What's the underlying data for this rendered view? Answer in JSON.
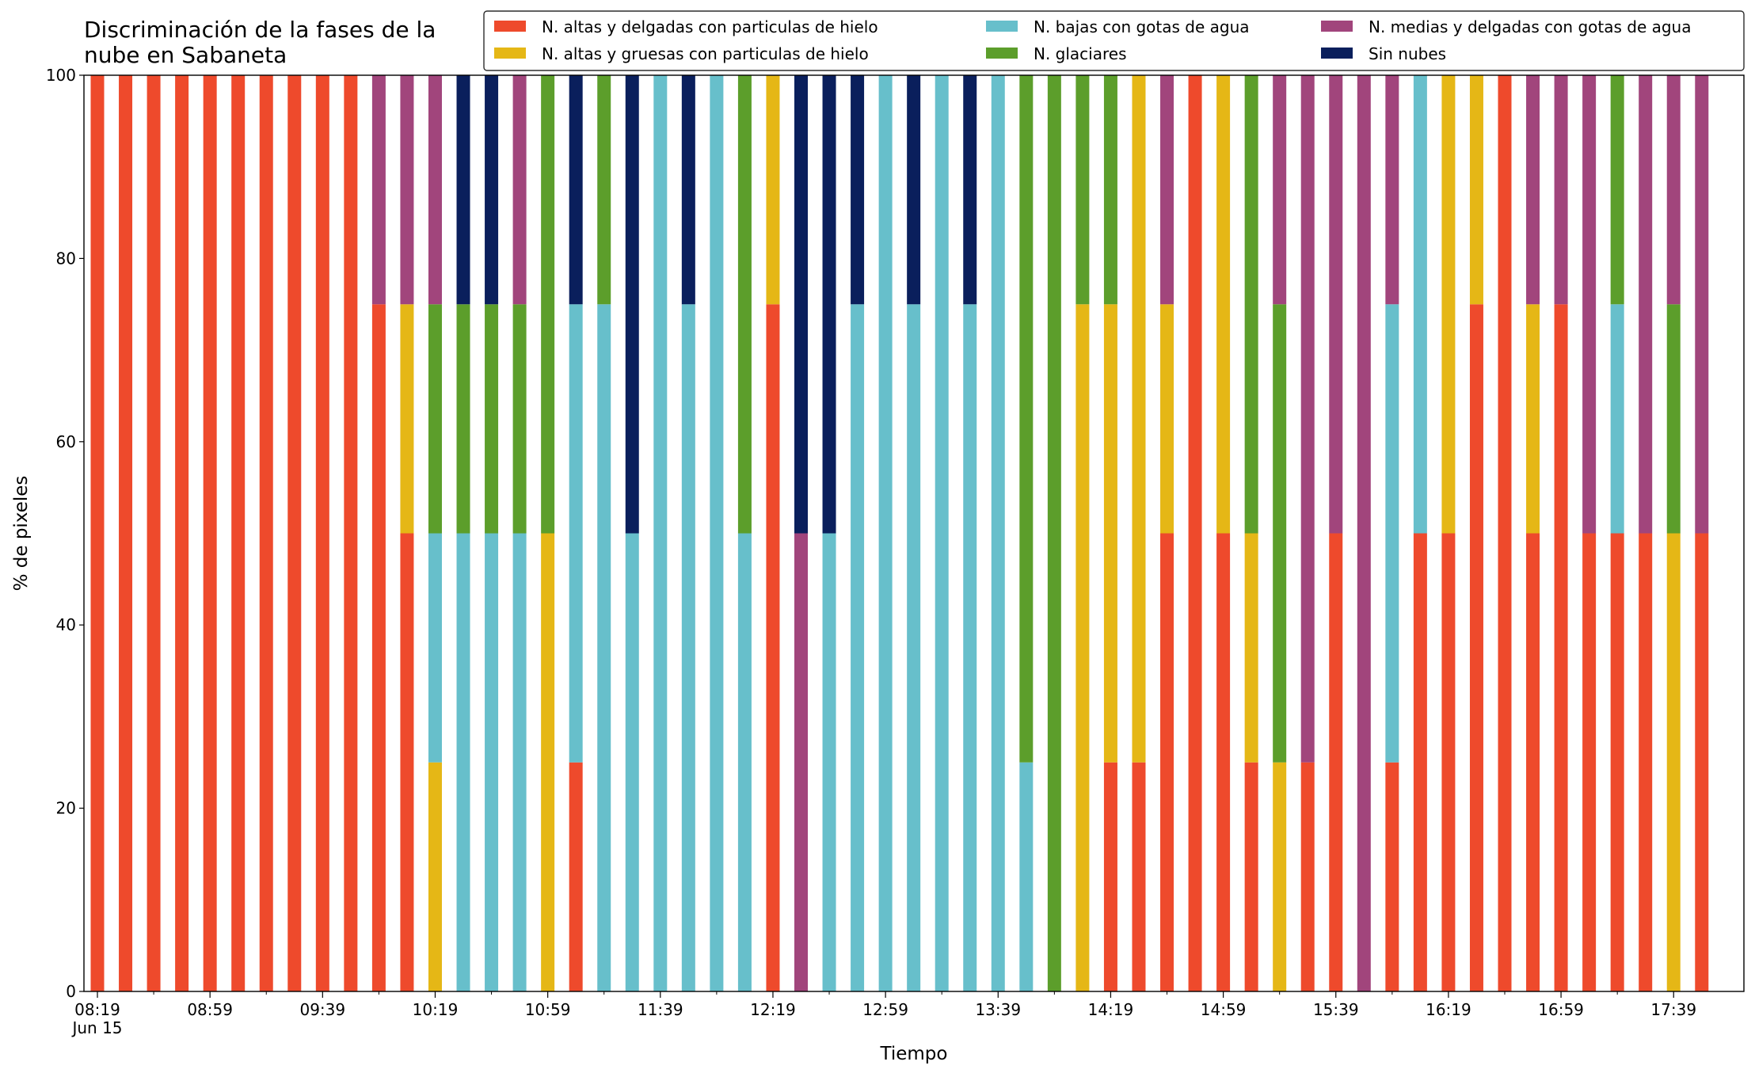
{
  "chart_data": {
    "type": "stacked_bar",
    "title": "Discriminación de la fases de la\nnube en Sabaneta",
    "xlabel": "Tiempo",
    "ylabel": "% de pixeles",
    "x": [
      "08:19",
      "08:29",
      "08:39",
      "08:49",
      "08:59",
      "09:09",
      "09:19",
      "09:29",
      "09:39",
      "09:49",
      "09:59",
      "10:09",
      "10:19",
      "10:29",
      "10:39",
      "10:49",
      "10:59",
      "11:09",
      "11:19",
      "11:29",
      "11:39",
      "11:49",
      "11:59",
      "12:09",
      "12:19",
      "12:29",
      "12:39",
      "12:49",
      "12:59",
      "13:09",
      "13:19",
      "13:29",
      "13:39",
      "13:49",
      "13:59",
      "14:09",
      "14:19",
      "14:29",
      "14:39",
      "14:49",
      "14:59",
      "15:09",
      "15:19",
      "15:29",
      "15:39",
      "15:49",
      "15:59",
      "16:09",
      "16:19",
      "16:29",
      "16:39",
      "16:49",
      "16:59",
      "17:09",
      "17:19",
      "17:29",
      "17:39",
      "17:49"
    ],
    "xticks": [
      "08:19",
      "08:59",
      "09:39",
      "10:19",
      "10:59",
      "11:39",
      "12:19",
      "12:59",
      "13:39",
      "14:19",
      "14:59",
      "15:39",
      "16:19",
      "16:59",
      "17:39"
    ],
    "xtick_date": "Jun 15",
    "ylim": [
      0,
      100
    ],
    "yticks": [
      0,
      20,
      40,
      60,
      80,
      100
    ],
    "grid": false,
    "legend": "top",
    "series": [
      {
        "name": "N. altas y delgadas con particulas de hielo",
        "color": "#ee4a2c",
        "values": [
          100,
          100,
          100,
          100,
          100,
          100,
          100,
          100,
          100,
          100,
          75,
          50,
          0,
          0,
          0,
          0,
          0,
          25,
          0,
          0,
          0,
          0,
          0,
          0,
          75,
          0,
          0,
          0,
          0,
          0,
          0,
          0,
          0,
          0,
          0,
          0,
          25,
          25,
          50,
          100,
          50,
          25,
          0,
          25,
          50,
          0,
          25,
          50,
          50,
          75,
          100,
          50,
          75,
          50,
          50,
          50,
          0,
          50
        ]
      },
      {
        "name": "N. altas y gruesas con particulas de hielo",
        "color": "#e5b716",
        "values": [
          0,
          0,
          0,
          0,
          0,
          0,
          0,
          0,
          0,
          0,
          0,
          25,
          25,
          0,
          0,
          0,
          50,
          0,
          0,
          0,
          0,
          0,
          0,
          0,
          25,
          0,
          0,
          0,
          0,
          0,
          0,
          0,
          0,
          0,
          0,
          75,
          50,
          75,
          25,
          0,
          50,
          25,
          25,
          0,
          0,
          0,
          0,
          0,
          50,
          25,
          0,
          25,
          0,
          0,
          0,
          0,
          50,
          0
        ]
      },
      {
        "name": "N. bajas con gotas de agua",
        "color": "#67bfcb",
        "values": [
          0,
          0,
          0,
          0,
          0,
          0,
          0,
          0,
          0,
          0,
          0,
          0,
          25,
          50,
          50,
          50,
          0,
          50,
          75,
          50,
          100,
          75,
          100,
          50,
          0,
          0,
          50,
          75,
          100,
          75,
          100,
          75,
          100,
          25,
          0,
          0,
          0,
          0,
          0,
          0,
          0,
          0,
          0,
          0,
          0,
          0,
          50,
          50,
          0,
          0,
          0,
          0,
          0,
          0,
          25,
          0,
          0,
          0
        ]
      },
      {
        "name": "N. glaciares",
        "color": "#5c9e2b",
        "values": [
          0,
          0,
          0,
          0,
          0,
          0,
          0,
          0,
          0,
          0,
          0,
          0,
          25,
          25,
          25,
          25,
          50,
          0,
          25,
          0,
          0,
          0,
          0,
          50,
          0,
          0,
          0,
          0,
          0,
          0,
          0,
          0,
          0,
          75,
          100,
          25,
          25,
          0,
          0,
          0,
          0,
          50,
          50,
          0,
          0,
          0,
          0,
          0,
          0,
          0,
          0,
          0,
          0,
          0,
          25,
          0,
          25,
          0
        ]
      },
      {
        "name": "N. medias y delgadas con gotas de agua",
        "color": "#a1457c",
        "values": [
          0,
          0,
          0,
          0,
          0,
          0,
          0,
          0,
          0,
          0,
          25,
          25,
          25,
          0,
          0,
          25,
          0,
          0,
          0,
          0,
          0,
          0,
          0,
          0,
          0,
          50,
          0,
          0,
          0,
          0,
          0,
          0,
          0,
          0,
          0,
          0,
          0,
          0,
          25,
          0,
          0,
          0,
          25,
          75,
          50,
          100,
          25,
          0,
          0,
          0,
          0,
          25,
          25,
          50,
          0,
          50,
          25,
          50
        ]
      },
      {
        "name": "Sin nubes",
        "color": "#0a1f5c",
        "values": [
          0,
          0,
          0,
          0,
          0,
          0,
          0,
          0,
          0,
          0,
          0,
          0,
          0,
          25,
          25,
          0,
          0,
          25,
          0,
          50,
          0,
          25,
          0,
          0,
          0,
          50,
          50,
          25,
          0,
          25,
          0,
          25,
          0,
          0,
          0,
          0,
          0,
          0,
          0,
          0,
          0,
          0,
          0,
          0,
          0,
          0,
          0,
          0,
          0,
          0,
          0,
          0,
          0,
          0,
          0,
          0,
          0,
          0
        ]
      }
    ]
  }
}
